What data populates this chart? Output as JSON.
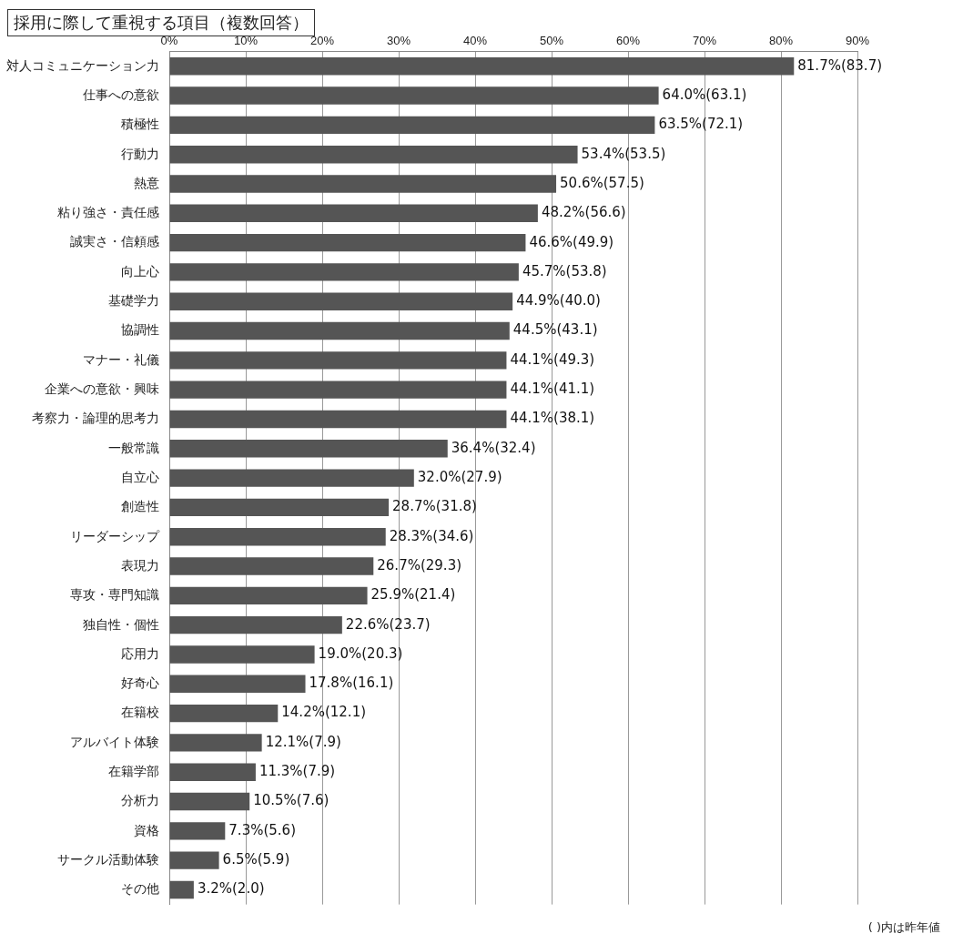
{
  "chart_data": {
    "type": "bar",
    "orientation": "horizontal",
    "title": "採用に際して重視する項目（複数回答）",
    "categories": [
      "対人コミュニケーション力",
      "仕事への意欲",
      "積極性",
      "行動力",
      "熱意",
      "粘り強さ・責任感",
      "誠実さ・信頼感",
      "向上心",
      "基礎学力",
      "協調性",
      "マナー・礼儀",
      "企業への意欲・興味",
      "考察力・論理的思考力",
      "一般常識",
      "自立心",
      "創造性",
      "リーダーシップ",
      "表現力",
      "専攻・専門知識",
      "独自性・個性",
      "応用力",
      "好奇心",
      "在籍校",
      "アルバイト体験",
      "在籍学部",
      "分析力",
      "資格",
      "サークル活動体験",
      "その他"
    ],
    "values": [
      81.7,
      64.0,
      63.5,
      53.4,
      50.6,
      48.2,
      46.6,
      45.7,
      44.9,
      44.5,
      44.1,
      44.1,
      44.1,
      36.4,
      32.0,
      28.7,
      28.3,
      26.7,
      25.9,
      22.6,
      19.0,
      17.8,
      14.2,
      12.1,
      11.3,
      10.5,
      7.3,
      6.5,
      3.2
    ],
    "value_labels": [
      "81.7%(83.7)",
      "64.0%(63.1)",
      "63.5%(72.1)",
      "53.4%(53.5)",
      "50.6%(57.5)",
      "48.2%(56.6)",
      "46.6%(49.9)",
      "45.7%(53.8)",
      "44.9%(40.0)",
      "44.5%(43.1)",
      "44.1%(49.3)",
      "44.1%(41.1)",
      "44.1%(38.1)",
      "36.4%(32.4)",
      "32.0%(27.9)",
      "28.7%(31.8)",
      "28.3%(34.6)",
      "26.7%(29.3)",
      "25.9%(21.4)",
      "22.6%(23.7)",
      "19.0%(20.3)",
      "17.8%(16.1)",
      "14.2%(12.1)",
      "12.1%(7.9)",
      "11.3%(7.9)",
      "10.5%(7.6)",
      "7.3%(5.6)",
      "6.5%(5.9)",
      "3.2%(2.0)"
    ],
    "color": "#555555",
    "xlim": [
      0,
      90
    ],
    "xticks": [
      {
        "value": 0,
        "label": "0%"
      },
      {
        "value": 10,
        "label": "10%"
      },
      {
        "value": 20,
        "label": "20%"
      },
      {
        "value": 30,
        "label": "30%"
      },
      {
        "value": 40,
        "label": "40%"
      },
      {
        "value": 50,
        "label": "50%"
      },
      {
        "value": 60,
        "label": "60%"
      },
      {
        "value": 70,
        "label": "70%"
      },
      {
        "value": 80,
        "label": "80%"
      },
      {
        "value": 90,
        "label": "90%"
      }
    ],
    "grid": "x",
    "legend": false,
    "annotations": [
      "( )内は昨年値"
    ]
  }
}
